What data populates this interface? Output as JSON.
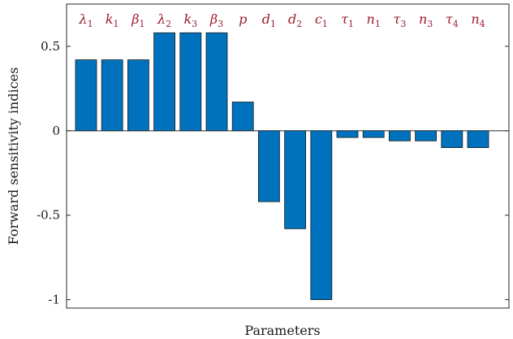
{
  "chart_data": {
    "type": "bar",
    "title": "",
    "xlabel": "Parameters",
    "ylabel": "Forward sensitivity indices",
    "ylim": [
      -1.05,
      0.75
    ],
    "yticks": [
      0.5,
      0,
      -0.5,
      -1
    ],
    "ytick_labels": [
      "0.5",
      "0",
      "-0.5",
      "-1"
    ],
    "grid": false,
    "bar_color": "#0072BD",
    "label_color": "#9b1b2a",
    "categories": [
      {
        "base": "λ",
        "sub": "1"
      },
      {
        "base": "k",
        "sub": "1"
      },
      {
        "base": "β",
        "sub": "1"
      },
      {
        "base": "λ",
        "sub": "2"
      },
      {
        "base": "k",
        "sub": "3"
      },
      {
        "base": "β",
        "sub": "3"
      },
      {
        "base": "p",
        "sub": ""
      },
      {
        "base": "d",
        "sub": "1"
      },
      {
        "base": "d",
        "sub": "2"
      },
      {
        "base": "c",
        "sub": "1"
      },
      {
        "base": "τ",
        "sub": "1"
      },
      {
        "base": "n",
        "sub": "1"
      },
      {
        "base": "τ",
        "sub": "3"
      },
      {
        "base": "n",
        "sub": "3"
      },
      {
        "base": "τ",
        "sub": "4"
      },
      {
        "base": "n",
        "sub": "4"
      }
    ],
    "values": [
      0.42,
      0.42,
      0.42,
      0.58,
      0.58,
      0.58,
      0.17,
      -0.42,
      -0.58,
      -1.0,
      -0.04,
      -0.04,
      -0.06,
      -0.06,
      -0.1,
      -0.1
    ]
  }
}
